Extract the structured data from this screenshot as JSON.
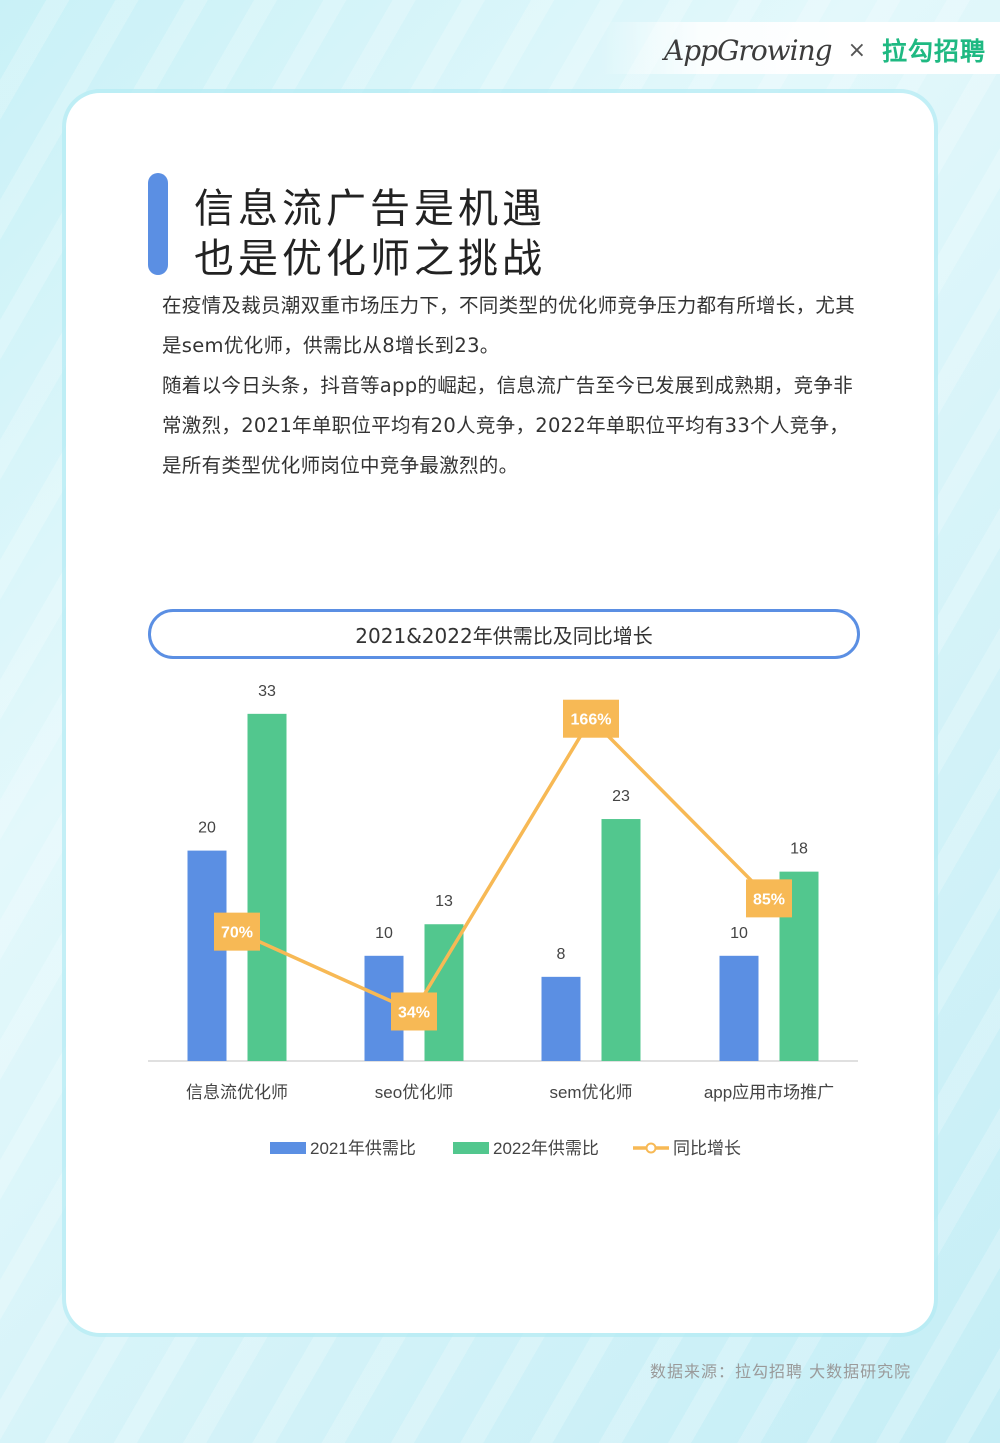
{
  "brand": {
    "app": "AppGrowing",
    "separator": "×",
    "partner": "拉勾招聘"
  },
  "title": {
    "line1": "信息流广告是机遇",
    "line2": "也是优化师之挑战"
  },
  "paragraphs": [
    "在疫情及裁员潮双重市场压力下，不同类型的优化师竞争压力都有所增长，尤其是sem优化师，供需比从8增长到23。",
    "随着以今日头条，抖音等app的崛起，信息流广告至今已发展到成熟期，竞争非常激烈，2021年单职位平均有20人竞争，2022年单职位平均有33个人竞争，是所有类型优化师岗位中竞争最激烈的。"
  ],
  "chart_data": {
    "type": "bar",
    "title": "2021&2022年供需比及同比增长",
    "categories": [
      "信息流优化师",
      "seo优化师",
      "sem优化师",
      "app应用市场推广"
    ],
    "series": [
      {
        "name": "2021年供需比",
        "type": "bar",
        "values": [
          20,
          10,
          8,
          10
        ],
        "color": "#5b8fe3"
      },
      {
        "name": "2022年供需比",
        "type": "bar",
        "values": [
          33,
          13,
          23,
          18
        ],
        "color": "#52c78e"
      },
      {
        "name": "同比增长",
        "type": "line",
        "values": [
          70,
          34,
          166,
          85
        ],
        "labels": [
          "70%",
          "34%",
          "166%",
          "85%"
        ],
        "color": "#f7b955"
      }
    ],
    "legend_position": "bottom",
    "grid": false
  },
  "source": "数据来源：拉勾招聘 大数据研究院"
}
